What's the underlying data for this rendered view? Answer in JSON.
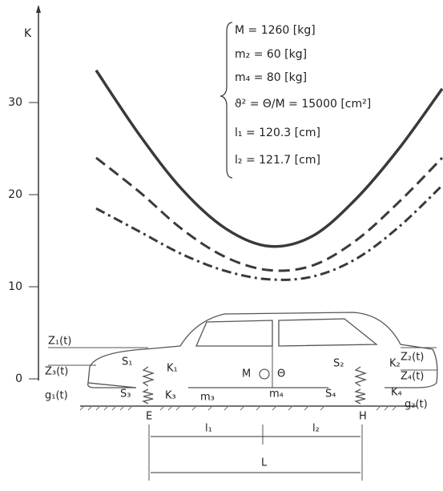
{
  "chart_data": {
    "type": "line",
    "y_label": "K",
    "categories": [
      null,
      null,
      null,
      null,
      null,
      null,
      null,
      null,
      null
    ],
    "series": [
      {
        "name": null,
        "style": "solid",
        "color": "#3a3a3a",
        "values": [
          33.5,
          26.5,
          20.5,
          16.3,
          14.4,
          15.5,
          19.5,
          25,
          31.5
        ]
      },
      {
        "name": null,
        "style": "dashed",
        "color": "#3a3a3a",
        "values": [
          24,
          20.3,
          16.2,
          13.2,
          11.8,
          12.3,
          15,
          19.2,
          24
        ]
      },
      {
        "name": null,
        "style": "dashdot",
        "color": "#3a3a3a",
        "values": [
          18.5,
          16,
          13.5,
          11.7,
          10.8,
          11.1,
          13,
          16.5,
          21
        ]
      }
    ],
    "ylim": [
      0,
      36
    ],
    "yticks": [
      0,
      10,
      20,
      30
    ],
    "annotations": [
      "M  = 1260    [kg]",
      "m₂ =   60    [kg]",
      "m₄ =   80    [kg]",
      "ϑ² = Θ/M = 15000 [cm²]",
      "l₁ = 120.3  [cm]",
      "l₂ = 121.7  [cm]"
    ]
  },
  "diagram": {
    "labels": {
      "z1": "Z₁(t)",
      "z3": "Z₃(t)",
      "g1": "g₁(t)",
      "z2": "Z₂(t)",
      "z4": "Z₄(t)",
      "g2": "g₂(t)",
      "s1": "S₁",
      "s2": "S₂",
      "s3": "S₃",
      "s4": "S₄",
      "k1": "K₁",
      "k2": "K₂",
      "k3": "K₃",
      "k4": "K₄",
      "m3": "m₃",
      "m4": "m₄",
      "m": "M",
      "theta": "Θ",
      "e": "E",
      "h": "H",
      "l1": "l₁",
      "l2": "l₂",
      "l": "L"
    }
  }
}
